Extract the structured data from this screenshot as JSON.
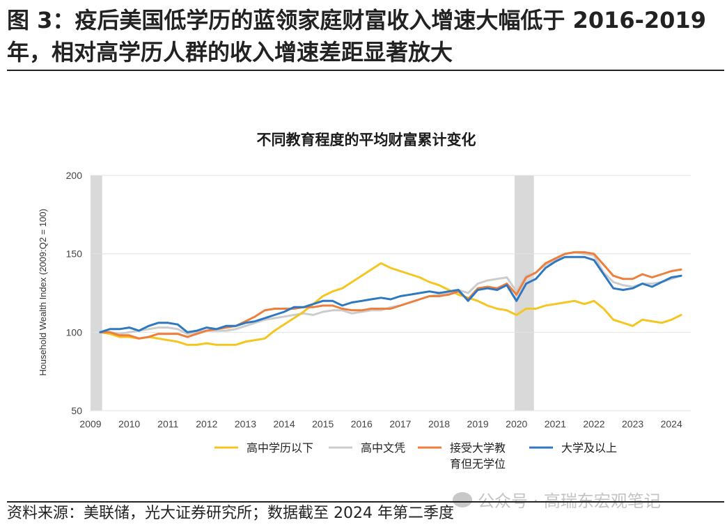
{
  "figure": {
    "title": "图 3：疫后美国低学历的蓝领家庭财富收入增速大幅低于 2016-2019 年，相对高学历人群的收入增速差距显著放大",
    "source": "资料来源：美联储，光大证券研究所；数据截至 2024 年第二季度",
    "watermark": "公众号 · 高瑞东宏观笔记"
  },
  "chart_data": {
    "type": "line",
    "title": "不同教育程度的平均财富累计变化",
    "xlabel": "",
    "ylabel": "Household Wealth Index (2009:Q2 = 100)",
    "xlim": [
      2009,
      2024.5
    ],
    "ylim": [
      50,
      200
    ],
    "yticks": [
      50,
      100,
      150,
      200
    ],
    "xticks": [
      2009,
      2010,
      2011,
      2012,
      2013,
      2014,
      2015,
      2016,
      2017,
      2018,
      2019,
      2020,
      2021,
      2022,
      2023,
      2024
    ],
    "recessions": [
      [
        2009.0,
        2009.3
      ],
      [
        2019.95,
        2020.45
      ]
    ],
    "grid": true,
    "legend_position": "bottom",
    "colors": {
      "below_hs": "#f5c520",
      "hs": "#cccccc",
      "some_college": "#ee7e3c",
      "college": "#2d78c0",
      "recession": "#d9d9d9"
    },
    "series": [
      {
        "name": "高中学历以下",
        "key": "below_hs",
        "x": [
          2009.25,
          2009.5,
          2009.75,
          2010.0,
          2010.25,
          2010.5,
          2010.75,
          2011.0,
          2011.25,
          2011.5,
          2011.75,
          2012.0,
          2012.25,
          2012.5,
          2012.75,
          2013.0,
          2013.25,
          2013.5,
          2013.75,
          2014.0,
          2014.25,
          2014.5,
          2014.75,
          2015.0,
          2015.25,
          2015.5,
          2015.75,
          2016.0,
          2016.25,
          2016.5,
          2016.75,
          2017.0,
          2017.25,
          2017.5,
          2017.75,
          2018.0,
          2018.25,
          2018.5,
          2018.75,
          2019.0,
          2019.25,
          2019.5,
          2019.75,
          2020.0,
          2020.25,
          2020.5,
          2020.75,
          2021.0,
          2021.25,
          2021.5,
          2021.75,
          2022.0,
          2022.25,
          2022.5,
          2022.75,
          2023.0,
          2023.25,
          2023.5,
          2023.75,
          2024.0,
          2024.25
        ],
        "values": [
          100,
          99,
          97,
          97,
          96,
          97,
          96,
          95,
          94,
          92,
          92,
          93,
          92,
          92,
          92,
          94,
          95,
          96,
          101,
          105,
          109,
          113,
          118,
          123,
          126,
          128,
          132,
          136,
          140,
          144,
          141,
          139,
          137,
          135,
          132,
          130,
          127,
          124,
          122,
          120,
          117,
          115,
          114,
          111,
          115,
          115,
          117,
          118,
          119,
          120,
          118,
          120,
          115,
          108,
          106,
          104,
          108,
          107,
          106,
          108,
          111
        ]
      },
      {
        "name": "高中文凭",
        "key": "hs",
        "x": [
          2009.25,
          2009.5,
          2009.75,
          2010.0,
          2010.25,
          2010.5,
          2010.75,
          2011.0,
          2011.25,
          2011.5,
          2011.75,
          2012.0,
          2012.25,
          2012.5,
          2012.75,
          2013.0,
          2013.25,
          2013.5,
          2013.75,
          2014.0,
          2014.25,
          2014.5,
          2014.75,
          2015.0,
          2015.25,
          2015.5,
          2015.75,
          2016.0,
          2016.25,
          2016.5,
          2016.75,
          2017.0,
          2017.25,
          2017.5,
          2017.75,
          2018.0,
          2018.25,
          2018.5,
          2018.75,
          2019.0,
          2019.25,
          2019.5,
          2019.75,
          2020.0,
          2020.25,
          2020.5,
          2020.75,
          2021.0,
          2021.25,
          2021.5,
          2021.75,
          2022.0,
          2022.25,
          2022.5,
          2022.75,
          2023.0,
          2023.25,
          2023.5,
          2023.75,
          2024.0,
          2024.25
        ],
        "values": [
          100,
          100,
          99,
          100,
          101,
          102,
          103,
          103,
          102,
          99,
          100,
          101,
          101,
          101,
          102,
          104,
          106,
          108,
          109,
          110,
          111,
          112,
          111,
          113,
          114,
          114,
          112,
          113,
          114,
          114,
          116,
          117,
          119,
          121,
          123,
          124,
          125,
          127,
          125,
          131,
          133,
          134,
          135,
          126,
          136,
          138,
          143,
          146,
          150,
          151,
          150,
          149,
          138,
          132,
          130,
          129,
          131,
          131,
          132,
          134,
          136
        ]
      },
      {
        "name": "接受大学教育但无学位",
        "label_lines": [
          "接受大学教",
          "育但无学位"
        ],
        "key": "some_college",
        "x": [
          2009.25,
          2009.5,
          2009.75,
          2010.0,
          2010.25,
          2010.5,
          2010.75,
          2011.0,
          2011.25,
          2011.5,
          2011.75,
          2012.0,
          2012.25,
          2012.5,
          2012.75,
          2013.0,
          2013.25,
          2013.5,
          2013.75,
          2014.0,
          2014.25,
          2014.5,
          2014.75,
          2015.0,
          2015.25,
          2015.5,
          2015.75,
          2016.0,
          2016.25,
          2016.5,
          2016.75,
          2017.0,
          2017.25,
          2017.5,
          2017.75,
          2018.0,
          2018.25,
          2018.5,
          2018.75,
          2019.0,
          2019.25,
          2019.5,
          2019.75,
          2020.0,
          2020.25,
          2020.5,
          2020.75,
          2021.0,
          2021.25,
          2021.5,
          2021.75,
          2022.0,
          2022.25,
          2022.5,
          2022.75,
          2023.0,
          2023.25,
          2023.5,
          2023.75,
          2024.0,
          2024.25
        ],
        "values": [
          100,
          100,
          98,
          98,
          96,
          97,
          99,
          99,
          99,
          97,
          99,
          101,
          102,
          103,
          104,
          107,
          110,
          114,
          115,
          115,
          115,
          116,
          116,
          117,
          117,
          115,
          114,
          114,
          115,
          115,
          115,
          117,
          119,
          121,
          123,
          123,
          124,
          126,
          121,
          128,
          129,
          128,
          131,
          124,
          135,
          138,
          144,
          147,
          150,
          151,
          151,
          150,
          143,
          136,
          134,
          134,
          137,
          135,
          137,
          139,
          140
        ]
      },
      {
        "name": "大学及以上",
        "key": "college",
        "x": [
          2009.25,
          2009.5,
          2009.75,
          2010.0,
          2010.25,
          2010.5,
          2010.75,
          2011.0,
          2011.25,
          2011.5,
          2011.75,
          2012.0,
          2012.25,
          2012.5,
          2012.75,
          2013.0,
          2013.25,
          2013.5,
          2013.75,
          2014.0,
          2014.25,
          2014.5,
          2014.75,
          2015.0,
          2015.25,
          2015.5,
          2015.75,
          2016.0,
          2016.25,
          2016.5,
          2016.75,
          2017.0,
          2017.25,
          2017.5,
          2017.75,
          2018.0,
          2018.25,
          2018.5,
          2018.75,
          2019.0,
          2019.25,
          2019.5,
          2019.75,
          2020.0,
          2020.25,
          2020.5,
          2020.75,
          2021.0,
          2021.25,
          2021.5,
          2021.75,
          2022.0,
          2022.25,
          2022.5,
          2022.75,
          2023.0,
          2023.25,
          2023.5,
          2023.75,
          2024.0,
          2024.25
        ],
        "values": [
          100,
          102,
          102,
          103,
          101,
          104,
          106,
          106,
          105,
          100,
          101,
          103,
          102,
          104,
          104,
          106,
          107,
          109,
          111,
          113,
          116,
          116,
          118,
          120,
          120,
          117,
          119,
          120,
          121,
          122,
          121,
          123,
          124,
          125,
          126,
          125,
          126,
          127,
          120,
          127,
          128,
          127,
          130,
          120,
          131,
          134,
          141,
          145,
          148,
          148,
          148,
          146,
          137,
          128,
          127,
          128,
          131,
          129,
          132,
          135,
          136
        ]
      }
    ]
  }
}
